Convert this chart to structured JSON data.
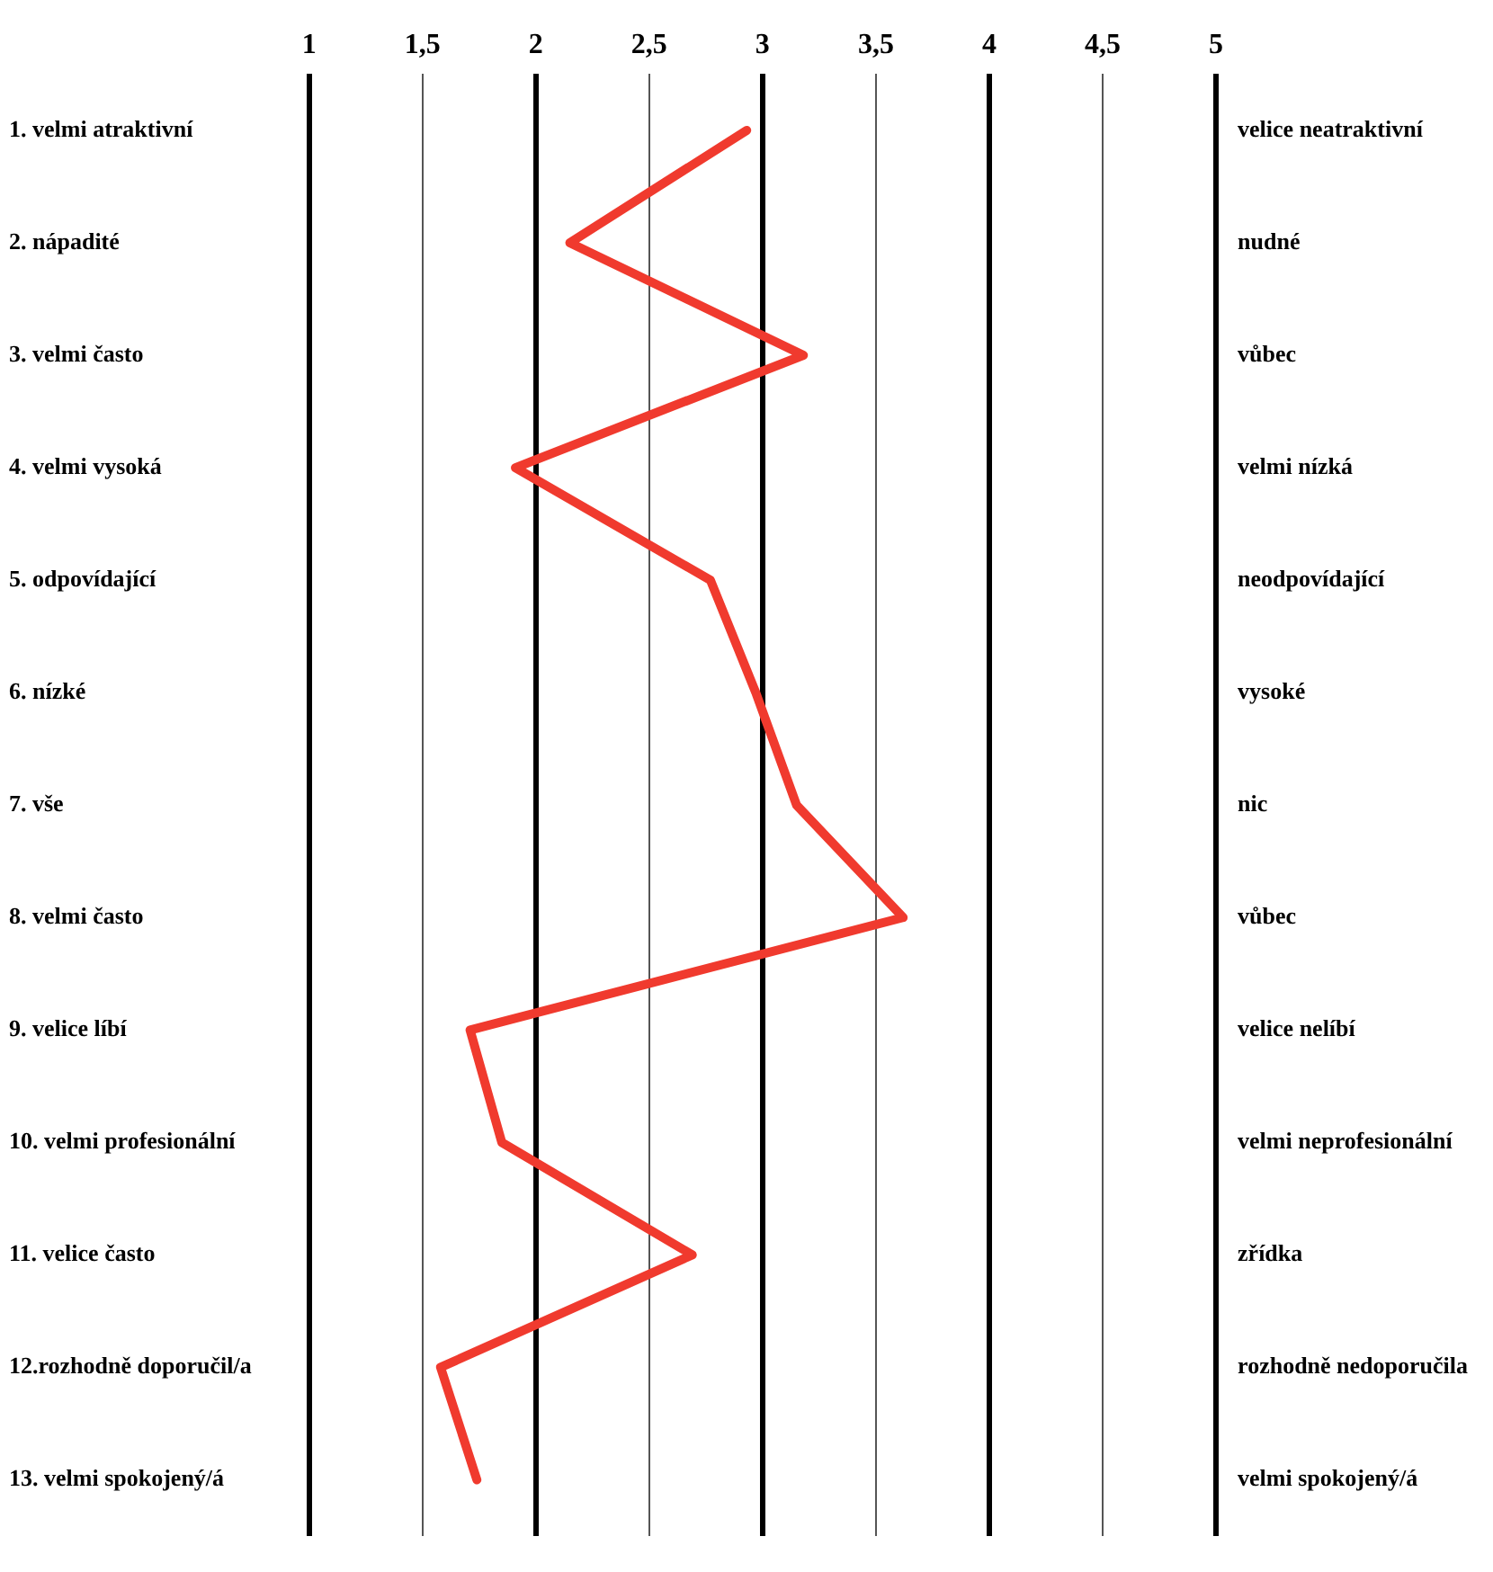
{
  "chart_data": {
    "type": "line",
    "orientation": "horizontal",
    "categories": [
      "1. velmi atraktivní",
      "2. nápadité",
      "3. velmi často",
      "4. velmi vysoká",
      "5. odpovídající",
      "6. nízké",
      "7. vše",
      "8. velmi často",
      "9. velice líbí",
      "10. velmi profesionální",
      "11. velice často",
      "12.rozhodně doporučil/a",
      "13. velmi spokojený/á"
    ],
    "y2_categories": [
      "velice neatraktivní",
      "nudné",
      "vůbec",
      "velmi nízká",
      "neodpovídající",
      "vysoké",
      "nic",
      "vůbec",
      "velice nelíbí",
      "velmi neprofesionální",
      "zřídka",
      "rozhodně nedoporučila",
      "velmi spokojený/á"
    ],
    "series": [
      {
        "color": "#f03a2e",
        "values": [
          2.93,
          2.15,
          3.18,
          1.91,
          2.77,
          2.97,
          3.15,
          3.62,
          1.71,
          1.85,
          2.69,
          1.58,
          1.74
        ]
      }
    ],
    "xlim": [
      1,
      5
    ],
    "xticks": [
      1,
      {
        "value": 1.5,
        "label": "1,5"
      },
      2,
      {
        "value": 2.5,
        "label": "2,5"
      },
      3,
      {
        "value": 3.5,
        "label": "3,5"
      },
      4,
      {
        "value": 4.5,
        "label": "4,5"
      },
      5
    ],
    "grid": "x",
    "legend": false,
    "marker": "none",
    "line_style": "solid"
  }
}
